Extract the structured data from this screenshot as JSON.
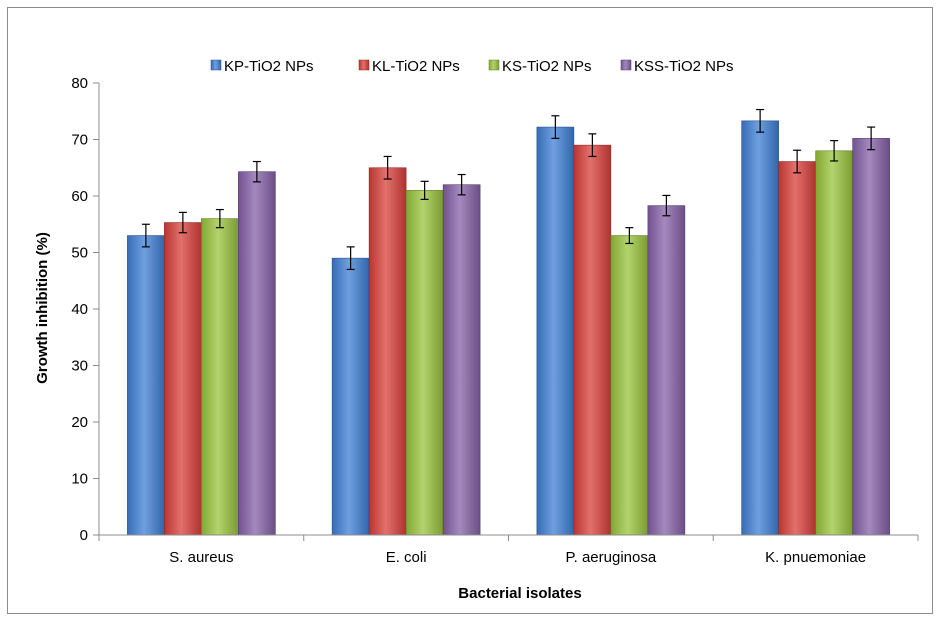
{
  "chart_data": {
    "type": "bar",
    "title": "",
    "xlabel": "Bacterial isolates",
    "ylabel": "Growth inhibition (%)",
    "ylim": [
      0,
      80
    ],
    "yticks": [
      0,
      10,
      20,
      30,
      40,
      50,
      60,
      70,
      80
    ],
    "grid": false,
    "legend_position": "top",
    "categories": [
      "S. aureus",
      "E. coli",
      "P. aeruginosa",
      "K. pnuemoniae"
    ],
    "series": [
      {
        "name": "KP-TiO2 NPs",
        "color": "#3f7fd6",
        "values": [
          53,
          49,
          72.2,
          73.3
        ],
        "errors": [
          2,
          2,
          2,
          2
        ]
      },
      {
        "name": "KL-TiO2 NPs",
        "color": "#d9403b",
        "values": [
          55.3,
          65,
          69,
          66.1
        ],
        "errors": [
          1.8,
          2,
          2,
          2
        ]
      },
      {
        "name": "KS-TiO2 NPs",
        "color": "#9ac43c",
        "values": [
          56,
          61,
          53,
          68
        ],
        "errors": [
          1.6,
          1.6,
          1.4,
          1.8
        ]
      },
      {
        "name": "KSS-TiO2 NPs",
        "color": "#8561a8",
        "values": [
          64.3,
          62,
          58.3,
          70.2
        ],
        "errors": [
          1.8,
          1.8,
          1.8,
          2
        ]
      }
    ]
  }
}
